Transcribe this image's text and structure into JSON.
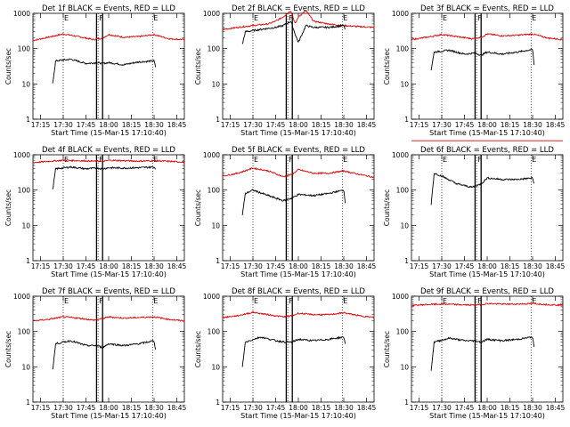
{
  "chart_data": {
    "type": "line",
    "layout": "3x3 grid",
    "shared": {
      "xlabel": "Start Time (15-Mar-15 17:10:40)",
      "ylabel": "Counts/sec",
      "yscale": "log",
      "ylim": [
        1,
        1000
      ],
      "xlim": [
        "17:10",
        "18:50"
      ],
      "y_ticks": [
        "1",
        "10",
        "100",
        "1000"
      ],
      "x_ticks": [
        "17:15",
        "17:30",
        "17:45",
        "18:00",
        "18:15",
        "18:30",
        "18:45"
      ],
      "series_colors": {
        "events": "#000000",
        "lld": "#dd0000"
      },
      "marker_labels": [
        "E",
        "F",
        "E"
      ]
    },
    "panels": [
      {
        "title": "Det 1f BLACK = Events, RED = LLD",
        "events": {
          "x": [
            "17:23",
            "17:25",
            "17:35",
            "17:45",
            "17:52",
            "17:56",
            "18:00",
            "18:10",
            "18:20",
            "18:30",
            "18:31"
          ],
          "y": [
            10,
            45,
            50,
            38,
            40,
            38,
            40,
            35,
            42,
            45,
            30
          ]
        },
        "lld": {
          "x": [
            "17:10",
            "17:20",
            "17:30",
            "17:40",
            "17:50",
            "17:56",
            "18:00",
            "18:10",
            "18:20",
            "18:30",
            "18:40",
            "18:50"
          ],
          "y": [
            170,
            210,
            260,
            220,
            180,
            200,
            250,
            210,
            220,
            250,
            190,
            180
          ]
        }
      },
      {
        "title": "Det 2f BLACK = Events, RED = LLD",
        "events": {
          "x": [
            "17:23",
            "17:25",
            "17:35",
            "17:45",
            "17:50",
            "17:55",
            "17:58",
            "18:00",
            "18:05",
            "18:10",
            "18:20",
            "18:30",
            "18:31"
          ],
          "y": [
            130,
            300,
            350,
            400,
            450,
            600,
            250,
            150,
            450,
            400,
            400,
            450,
            350
          ]
        },
        "lld": {
          "x": [
            "17:10",
            "17:20",
            "17:30",
            "17:40",
            "17:45",
            "17:50",
            "17:55",
            "17:58",
            "18:00",
            "18:05",
            "18:10",
            "18:20",
            "18:30",
            "18:40",
            "18:50"
          ],
          "y": [
            350,
            400,
            450,
            500,
            600,
            800,
            1200,
            500,
            800,
            1200,
            600,
            500,
            450,
            420,
            400
          ]
        }
      },
      {
        "title": "Det 3f BLACK = Events, RED = LLD",
        "events": {
          "x": [
            "17:23",
            "17:25",
            "17:35",
            "17:45",
            "17:52",
            "17:56",
            "18:00",
            "18:10",
            "18:20",
            "18:30",
            "18:31"
          ],
          "y": [
            25,
            80,
            90,
            70,
            75,
            65,
            80,
            70,
            80,
            95,
            35
          ]
        },
        "lld": {
          "x": [
            "17:10",
            "17:20",
            "17:30",
            "17:40",
            "17:50",
            "17:56",
            "18:00",
            "18:10",
            "18:20",
            "18:30",
            "18:40",
            "18:50"
          ],
          "y": [
            180,
            210,
            250,
            220,
            190,
            210,
            260,
            230,
            240,
            260,
            200,
            180
          ]
        }
      },
      {
        "title": "Det 4f BLACK = Events, RED = LLD",
        "events": {
          "x": [
            "17:23",
            "17:25",
            "17:35",
            "17:45",
            "17:52",
            "17:56",
            "18:00",
            "18:10",
            "18:20",
            "18:30",
            "18:31"
          ],
          "y": [
            100,
            400,
            450,
            400,
            420,
            400,
            430,
            420,
            430,
            450,
            400
          ]
        },
        "lld": {
          "x": [
            "17:10",
            "17:20",
            "17:30",
            "17:40",
            "17:50",
            "17:56",
            "18:00",
            "18:10",
            "18:20",
            "18:30",
            "18:40",
            "18:50"
          ],
          "y": [
            600,
            650,
            700,
            680,
            660,
            650,
            700,
            680,
            660,
            680,
            650,
            620
          ]
        }
      },
      {
        "title": "Det 5f BLACK = Events, RED = LLD",
        "events": {
          "x": [
            "17:23",
            "17:25",
            "17:30",
            "17:40",
            "17:50",
            "17:56",
            "18:00",
            "18:10",
            "18:20",
            "18:30",
            "18:31"
          ],
          "y": [
            20,
            80,
            100,
            70,
            50,
            60,
            75,
            70,
            80,
            100,
            45
          ]
        },
        "lld": {
          "x": [
            "17:10",
            "17:20",
            "17:30",
            "17:40",
            "17:50",
            "17:56",
            "18:00",
            "18:10",
            "18:20",
            "18:30",
            "18:40",
            "18:50"
          ],
          "y": [
            250,
            300,
            420,
            350,
            240,
            280,
            380,
            300,
            300,
            350,
            280,
            230
          ]
        }
      },
      {
        "title": "Det 6f BLACK = Events, RED = LLD",
        "events": {
          "x": [
            "17:23",
            "17:25",
            "17:30",
            "17:40",
            "17:50",
            "17:56",
            "18:00",
            "18:10",
            "18:20",
            "18:30",
            "18:31"
          ],
          "y": [
            40,
            300,
            250,
            150,
            120,
            150,
            220,
            200,
            200,
            220,
            150
          ]
        },
        "lld": {
          "x": [
            "17:10",
            "18:50"
          ],
          "y": [
            2500,
            2500
          ]
        }
      },
      {
        "title": "Det 7f BLACK = Events, RED = LLD",
        "events": {
          "x": [
            "17:23",
            "17:25",
            "17:35",
            "17:45",
            "17:52",
            "17:56",
            "18:00",
            "18:10",
            "18:20",
            "18:30",
            "18:31"
          ],
          "y": [
            8,
            45,
            55,
            40,
            40,
            35,
            45,
            40,
            45,
            55,
            30
          ]
        },
        "lld": {
          "x": [
            "17:10",
            "17:20",
            "17:30",
            "17:40",
            "17:50",
            "17:56",
            "18:00",
            "18:10",
            "18:20",
            "18:30",
            "18:40",
            "18:50"
          ],
          "y": [
            200,
            220,
            260,
            240,
            210,
            230,
            260,
            240,
            250,
            260,
            220,
            200
          ]
        }
      },
      {
        "title": "Det 8f BLACK = Events, RED = LLD",
        "events": {
          "x": [
            "17:23",
            "17:25",
            "17:35",
            "17:45",
            "17:52",
            "17:56",
            "18:00",
            "18:10",
            "18:20",
            "18:30",
            "18:31"
          ],
          "y": [
            10,
            50,
            70,
            55,
            50,
            50,
            60,
            55,
            60,
            70,
            45
          ]
        },
        "lld": {
          "x": [
            "17:10",
            "17:20",
            "17:30",
            "17:40",
            "17:50",
            "17:56",
            "18:00",
            "18:10",
            "18:20",
            "18:30",
            "18:40",
            "18:50"
          ],
          "y": [
            250,
            280,
            350,
            300,
            260,
            280,
            330,
            300,
            300,
            340,
            280,
            250
          ]
        }
      },
      {
        "title": "Det 9f BLACK = Events, RED = LLD",
        "events": {
          "x": [
            "17:23",
            "17:25",
            "17:35",
            "17:45",
            "17:52",
            "17:56",
            "18:00",
            "18:10",
            "18:20",
            "18:30",
            "18:31"
          ],
          "y": [
            8,
            50,
            65,
            55,
            55,
            50,
            60,
            55,
            60,
            70,
            35
          ]
        },
        "lld": {
          "x": [
            "17:10",
            "17:20",
            "17:30",
            "17:40",
            "17:50",
            "17:56",
            "18:00",
            "18:10",
            "18:20",
            "18:30",
            "18:40",
            "18:50"
          ],
          "y": [
            550,
            580,
            600,
            580,
            560,
            580,
            620,
            600,
            600,
            620,
            580,
            560
          ]
        }
      }
    ]
  }
}
